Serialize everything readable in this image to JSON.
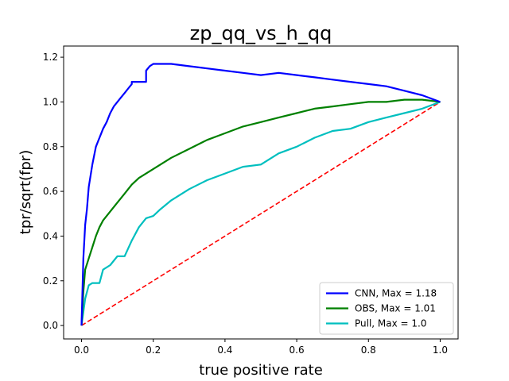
{
  "chart_data": {
    "type": "line",
    "title": "zp_qq_vs_h_qq",
    "xlabel": "true positive rate",
    "ylabel": "tpr/sqrt(fpr)",
    "xlim": [
      -0.05,
      1.05
    ],
    "ylim": [
      -0.06,
      1.25
    ],
    "xticks": [
      0.0,
      0.2,
      0.4,
      0.6,
      0.8,
      1.0
    ],
    "xtick_labels": [
      "0.0",
      "0.2",
      "0.4",
      "0.6",
      "0.8",
      "1.0"
    ],
    "yticks": [
      0.0,
      0.2,
      0.4,
      0.6,
      0.8,
      1.0,
      1.2
    ],
    "ytick_labels": [
      "0.0",
      "0.2",
      "0.4",
      "0.6",
      "0.8",
      "1.0",
      "1.2"
    ],
    "grid": false,
    "legend_position": "lower-right",
    "series": [
      {
        "name": "CNN, Max = 1.18",
        "color": "#0000ff",
        "x": [
          0.0,
          0.005,
          0.01,
          0.015,
          0.02,
          0.03,
          0.04,
          0.05,
          0.06,
          0.07,
          0.08,
          0.09,
          0.1,
          0.11,
          0.12,
          0.13,
          0.14,
          0.14,
          0.18,
          0.18,
          0.19,
          0.2,
          0.22,
          0.25,
          0.3,
          0.35,
          0.4,
          0.45,
          0.5,
          0.55,
          0.6,
          0.65,
          0.7,
          0.75,
          0.8,
          0.85,
          0.9,
          0.95,
          1.0
        ],
        "y": [
          0.0,
          0.3,
          0.45,
          0.52,
          0.62,
          0.72,
          0.8,
          0.84,
          0.88,
          0.91,
          0.95,
          0.98,
          1.0,
          1.02,
          1.04,
          1.06,
          1.08,
          1.09,
          1.09,
          1.14,
          1.16,
          1.17,
          1.17,
          1.17,
          1.16,
          1.15,
          1.14,
          1.13,
          1.12,
          1.13,
          1.12,
          1.11,
          1.1,
          1.09,
          1.08,
          1.07,
          1.05,
          1.03,
          1.0
        ]
      },
      {
        "name": "OBS, Max = 1.01",
        "color": "#008000",
        "x": [
          0.0,
          0.005,
          0.01,
          0.02,
          0.03,
          0.04,
          0.05,
          0.06,
          0.08,
          0.1,
          0.12,
          0.14,
          0.16,
          0.18,
          0.2,
          0.25,
          0.3,
          0.35,
          0.4,
          0.45,
          0.5,
          0.55,
          0.6,
          0.65,
          0.7,
          0.75,
          0.8,
          0.85,
          0.9,
          0.95,
          1.0
        ],
        "y": [
          0.0,
          0.15,
          0.25,
          0.3,
          0.35,
          0.4,
          0.44,
          0.47,
          0.51,
          0.55,
          0.59,
          0.63,
          0.66,
          0.68,
          0.7,
          0.75,
          0.79,
          0.83,
          0.86,
          0.89,
          0.91,
          0.93,
          0.95,
          0.97,
          0.98,
          0.99,
          1.0,
          1.0,
          1.01,
          1.01,
          1.0
        ]
      },
      {
        "name": "Pull, Max = 1.0",
        "color": "#00bfbf",
        "x": [
          0.0,
          0.01,
          0.02,
          0.03,
          0.05,
          0.06,
          0.08,
          0.1,
          0.12,
          0.14,
          0.16,
          0.18,
          0.2,
          0.22,
          0.25,
          0.3,
          0.35,
          0.4,
          0.45,
          0.5,
          0.55,
          0.6,
          0.65,
          0.7,
          0.75,
          0.8,
          0.85,
          0.9,
          0.95,
          1.0
        ],
        "y": [
          0.0,
          0.12,
          0.18,
          0.19,
          0.19,
          0.25,
          0.27,
          0.31,
          0.31,
          0.38,
          0.44,
          0.48,
          0.49,
          0.52,
          0.56,
          0.61,
          0.65,
          0.68,
          0.71,
          0.72,
          0.77,
          0.8,
          0.84,
          0.87,
          0.88,
          0.91,
          0.93,
          0.95,
          0.97,
          1.0
        ]
      },
      {
        "name": "",
        "color": "#ff0000",
        "dashed": true,
        "x": [
          0.0,
          1.0
        ],
        "y": [
          0.0,
          1.0
        ]
      }
    ]
  }
}
